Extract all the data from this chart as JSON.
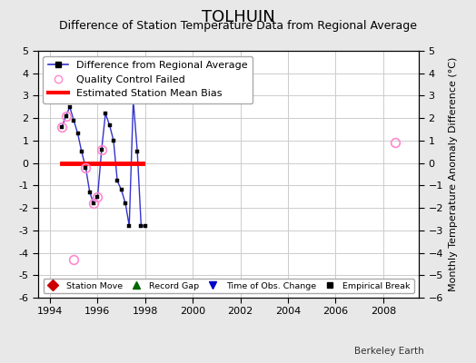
{
  "title": "TOLHUIN",
  "subtitle": "Difference of Station Temperature Data from Regional Average",
  "ylabel": "Monthly Temperature Anomaly Difference (°C)",
  "credit": "Berkeley Earth",
  "xlim": [
    1993.5,
    2009.5
  ],
  "ylim": [
    -6,
    5
  ],
  "yticks": [
    -6,
    -5,
    -4,
    -3,
    -2,
    -1,
    0,
    1,
    2,
    3,
    4,
    5
  ],
  "xticks": [
    1994,
    1996,
    1998,
    2000,
    2002,
    2004,
    2006,
    2008
  ],
  "background_color": "#e8e8e8",
  "plot_bg_color": "#ffffff",
  "grid_color": "#cccccc",
  "line_color": "#3333cc",
  "marker_color": "#000000",
  "bias_line_color": "#ff0000",
  "bias_x_start": 1994.5,
  "bias_x_end": 1997.9,
  "bias_y": 0.0,
  "qc_color": "#ff88cc",
  "x_data": [
    1994.5,
    1994.67,
    1994.83,
    1995.0,
    1995.17,
    1995.33,
    1995.5,
    1995.67,
    1995.83,
    1996.0,
    1996.17,
    1996.33,
    1996.5,
    1996.67,
    1996.83,
    1997.0,
    1997.17,
    1997.33,
    1997.5,
    1997.67,
    1997.83,
    1998.0
  ],
  "y_data": [
    1.6,
    2.1,
    2.5,
    1.9,
    1.3,
    0.5,
    -0.2,
    -1.3,
    -1.8,
    -1.5,
    0.6,
    2.2,
    1.7,
    1.0,
    -0.8,
    -1.2,
    -1.8,
    -2.8,
    2.8,
    0.5,
    -2.8,
    -2.8
  ],
  "qc_x": [
    1994.5,
    1994.67,
    1995.5,
    1996.0,
    1996.17,
    1995.83
  ],
  "qc_y": [
    1.6,
    2.1,
    -0.2,
    -1.5,
    0.6,
    -1.8
  ],
  "isolated_x": [
    2008.5
  ],
  "isolated_y": [
    0.9
  ],
  "bottom_outlier_x": [
    1995.0
  ],
  "bottom_outlier_y": [
    -4.3
  ],
  "title_fontsize": 13,
  "subtitle_fontsize": 9,
  "tick_fontsize": 8,
  "ylabel_fontsize": 8,
  "legend_fontsize": 8
}
